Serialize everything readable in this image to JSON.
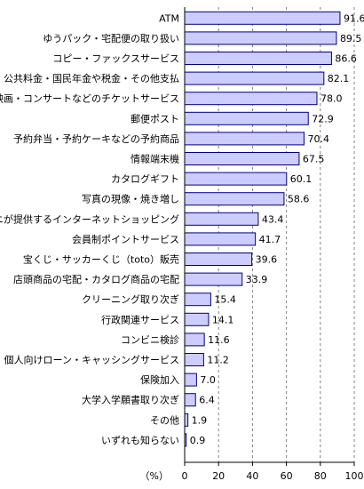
{
  "chart_data": {
    "type": "bar",
    "orientation": "horizontal",
    "categories": [
      "ATM",
      "ゆうパック・宅配便の取り扱い",
      "コピー・ファックスサービス",
      "公共料金・国民年金や税金・その他支払",
      "映画・コンサートなどのチケットサービス",
      "郵便ポスト",
      "予約弁当・予約ケーキなどの予約商品",
      "情報端末機",
      "カタログギフト",
      "写真の現像・焼き増し",
      "コンビニが提供するインターネットショッピング",
      "会員制ポイントサービス",
      "宝くじ・サッカーくじ（toto）販売",
      "店頭商品の宅配・カタログ商品の宅配",
      "クリーニング取り次ぎ",
      "行政関連サービス",
      "コンビニ検診",
      "個人向けローン・キャッシングサービス",
      "保険加入",
      "大学入学願書取り次ぎ",
      "その他",
      "いずれも知らない"
    ],
    "values": [
      91.6,
      89.5,
      86.6,
      82.1,
      78.0,
      72.9,
      70.4,
      67.5,
      60.1,
      58.6,
      43.4,
      41.7,
      39.6,
      33.9,
      15.4,
      14.1,
      11.6,
      11.2,
      7.0,
      6.4,
      1.9,
      0.9
    ],
    "value_labels": [
      "91.6",
      "89.5",
      "86.6",
      "82.1",
      "78.0",
      "72.9",
      "70.4",
      "67.5",
      "60.1",
      "58.6",
      "43.4",
      "41.7",
      "39.6",
      "33.9",
      "15.4",
      "14.1",
      "11.6",
      "11.2",
      "7.0",
      "6.4",
      "1.9",
      "0.9"
    ],
    "xlim": [
      0,
      100
    ],
    "x_ticks": [
      "0",
      "20",
      "40",
      "60",
      "80",
      "100"
    ],
    "x_unit_label": "（%）",
    "grid": "vertical dashed",
    "colors": {
      "bar_fill": "#ccccff",
      "bar_stroke": "#000080",
      "grid": "#808080",
      "axis": "#000000"
    }
  }
}
